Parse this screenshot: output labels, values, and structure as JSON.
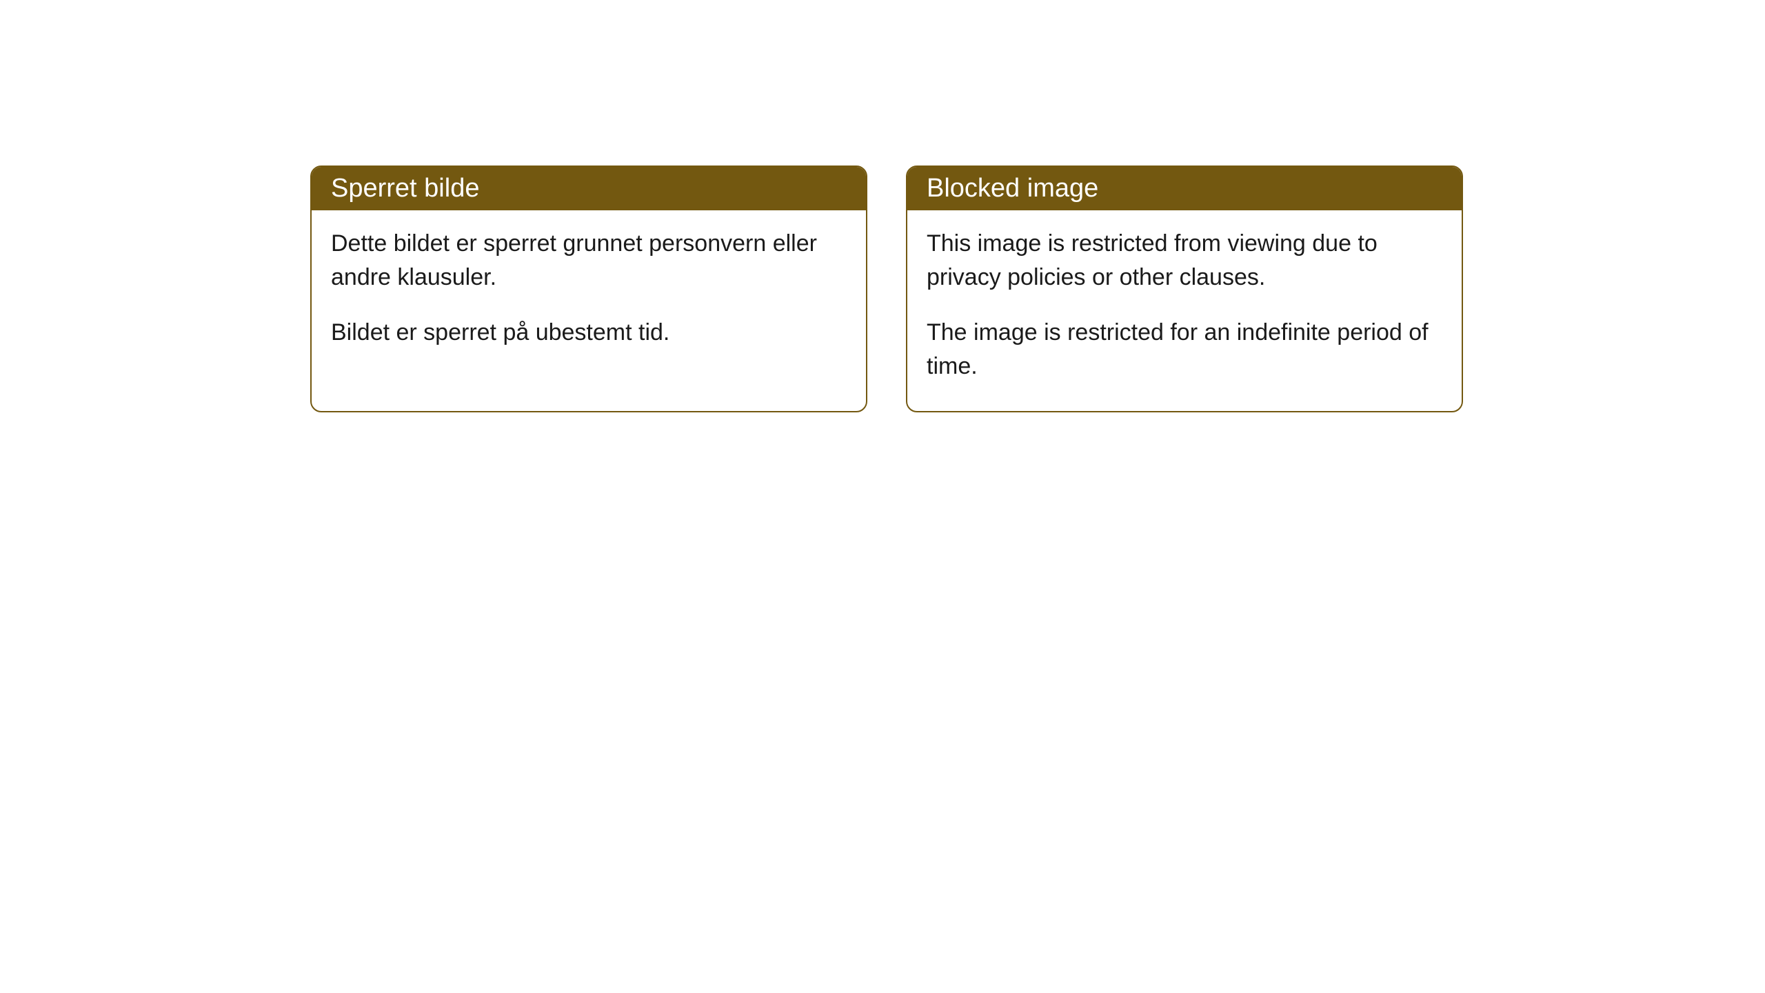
{
  "cards": [
    {
      "title": "Sperret bilde",
      "paragraph1": "Dette bildet er sperret grunnet personvern eller andre klausuler.",
      "paragraph2": "Bildet er sperret på ubestemt tid."
    },
    {
      "title": "Blocked image",
      "paragraph1": "This image is restricted from viewing due to privacy policies or other clauses.",
      "paragraph2": "The image is restricted for an indefinite period of time."
    }
  ],
  "style": {
    "header_bg_color": "#735810",
    "header_text_color": "#ffffff",
    "border_color": "#735810",
    "body_bg_color": "#ffffff",
    "body_text_color": "#1a1a1a",
    "border_radius": 16,
    "title_fontsize": 38,
    "body_fontsize": 34
  }
}
